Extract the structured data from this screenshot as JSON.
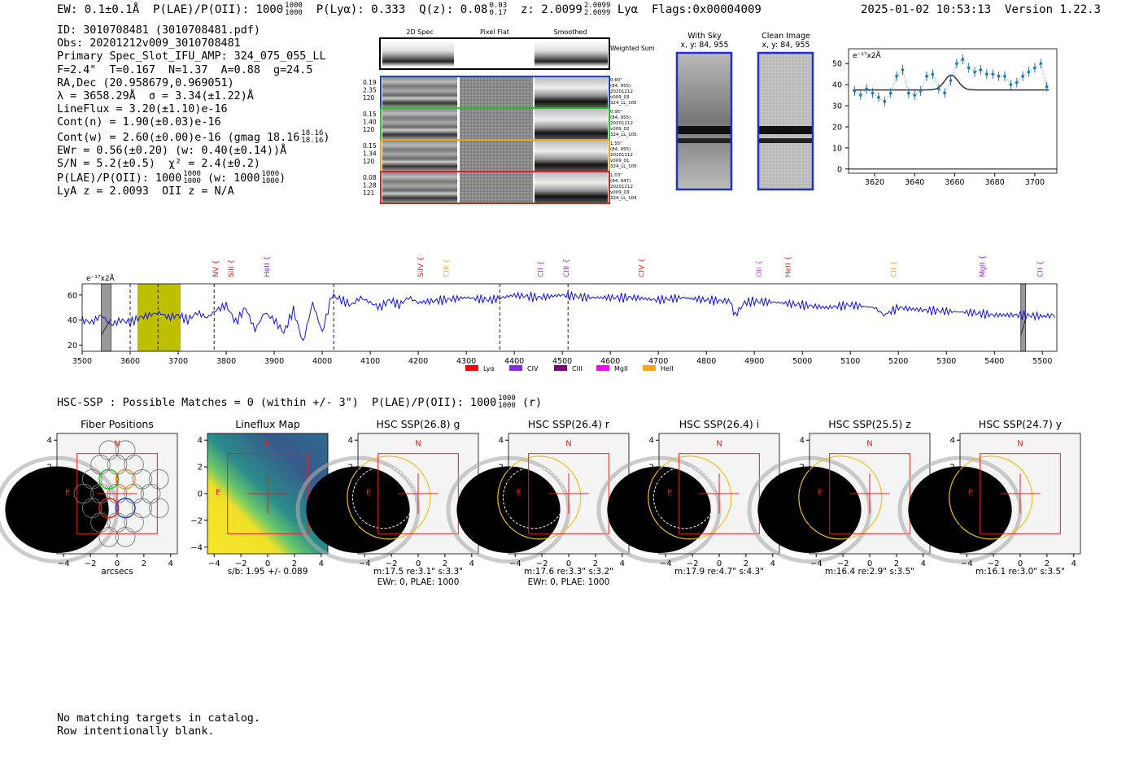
{
  "header": {
    "ew_label": "EW: 0.1±0.1Å",
    "plae_label": "P(LAE)/P(OII): 1000",
    "plae_hi": "1000",
    "plae_lo": "1000",
    "plya_label": "P(Lyα): 0.333",
    "qz_label": "Q(z): 0.08",
    "qz_hi": "0.03",
    "qz_lo": "0.17",
    "z_label": "z: 2.0099",
    "z_hi": "2.0099",
    "z_lo": "2.0099",
    "z_line": "Lyα",
    "flags": "Flags:0x00004009",
    "timestamp": "2025-01-02 10:53:13",
    "version": "Version 1.22.3"
  },
  "info": {
    "id": "ID: 3010708481 (3010708481.pdf)",
    "obs": "Obs: 20201212v009_3010708481",
    "primary": "Primary Spec_Slot_IFU_AMP: 324_075_055_LL",
    "params": "F=2.4\"  T=0.167  N=1.37  A=0.88  g=24.5",
    "radec": "RA,Dec (20.958679,0.969051)",
    "lambda_sigma": "λ = 3658.29Å  σ = 3.34(±1.22)Å",
    "lineflux": "LineFlux = 3.20(±1.10)e-16",
    "contn": "Cont(n) = 1.90(±0.03)e-16",
    "contw": "Cont(w) = 2.60(±0.00)e-16 (gmag 18.16",
    "contw_hi": "18.16",
    "contw_lo": "18.16",
    "ewr": "EWr = 0.56(±0.20) (w: 0.40(±0.14))Å",
    "sn": "S/N = 5.2(±0.5)  χ² = 2.4(±0.2)",
    "plae": "P(LAE)/P(OII): 1000",
    "plae_hi": "1000",
    "plae_lo": "1000",
    "plae_w": "(w: 1000",
    "plae_w_hi": "1000",
    "plae_w_lo": "1000",
    "lya": "LyA z = 2.0093  OII z = N/A"
  },
  "cutouts": {
    "col_titles": [
      "2D Spec",
      "Pixel Flat",
      "Smoothed"
    ],
    "weighted_label": "Weighted Sum",
    "rows": [
      {
        "left": [
          "0.19",
          "2.35",
          "120"
        ],
        "right": [
          "0.60\"",
          "(84, 955)",
          "20201212",
          "v009_03",
          "324_LL_105"
        ],
        "color": "#1f3fcf"
      },
      {
        "left": [
          "0.15",
          "1.40",
          "120"
        ],
        "right": [
          "0.95\"",
          "(84, 955)",
          "20201212",
          "v009_02",
          "324_LL_105"
        ],
        "color": "#22c322"
      },
      {
        "left": [
          "0.15",
          "1.34",
          "120"
        ],
        "right": [
          "1.55\"",
          "(84, 955)",
          "20201212",
          "v009_01",
          "324_LL_105"
        ],
        "color": "#f0a020"
      },
      {
        "left": [
          "0.08",
          "1.28",
          "121"
        ],
        "right": [
          "1.03\"",
          "(84, 947)",
          "20201212",
          "v009_03",
          "324_LL_104"
        ],
        "color": "#e02020"
      }
    ],
    "with_sky_title": "With Sky",
    "with_sky_coords": "x, y: 84, 955",
    "clean_title": "Clean Image",
    "clean_coords": "x, y: 84, 955"
  },
  "chart_data": [
    {
      "type": "line",
      "name": "zoom-spectrum",
      "unit_label": "e⁻¹⁷x2Å",
      "x": [
        3610,
        3613,
        3616,
        3619,
        3622,
        3625,
        3628,
        3631,
        3634,
        3637,
        3640,
        3643,
        3646,
        3649,
        3652,
        3655,
        3658,
        3661,
        3664,
        3667,
        3670,
        3673,
        3676,
        3679,
        3682,
        3685,
        3688,
        3691,
        3694,
        3697,
        3700,
        3703,
        3706
      ],
      "y": [
        37,
        35,
        38,
        36,
        34,
        32,
        36,
        44,
        47,
        36,
        35,
        37,
        44,
        45,
        38,
        36,
        42,
        50,
        52,
        48,
        46,
        47,
        45,
        45,
        44,
        44,
        40,
        41,
        44,
        46,
        48,
        50,
        39
      ],
      "model": {
        "baseline": 37.5,
        "amplitude": 7.0,
        "center": 3658.3,
        "sigma": 3.34
      },
      "xlim": [
        3607,
        3711
      ],
      "ylim": [
        -2,
        57
      ],
      "xticks": [
        3620,
        3640,
        3660,
        3680,
        3700
      ],
      "yticks": [
        0,
        10,
        20,
        30,
        40,
        50
      ]
    },
    {
      "type": "line",
      "name": "full-spectrum",
      "unit_label": "e⁻¹⁷x2Å",
      "x": [
        3500,
        3520,
        3540,
        3560,
        3580,
        3600,
        3620,
        3640,
        3660,
        3680,
        3700,
        3720,
        3740,
        3760,
        3780,
        3800,
        3820,
        3840,
        3860,
        3880,
        3900,
        3920,
        3940,
        3960,
        3980,
        4000,
        4020,
        4040,
        4060,
        4080,
        4100,
        4120,
        4140,
        4160,
        4180,
        4200,
        4250,
        4300,
        4350,
        4400,
        4450,
        4500,
        4550,
        4600,
        4650,
        4700,
        4750,
        4800,
        4850,
        4860,
        4880,
        4900,
        4950,
        5000,
        5050,
        5100,
        5150,
        5170,
        5200,
        5250,
        5300,
        5350,
        5400,
        5450,
        5500,
        5530
      ],
      "y": [
        40,
        38,
        44,
        36,
        40,
        38,
        42,
        44,
        46,
        42,
        44,
        40,
        46,
        42,
        48,
        52,
        38,
        50,
        32,
        46,
        40,
        30,
        48,
        22,
        54,
        30,
        60,
        56,
        52,
        58,
        54,
        50,
        56,
        52,
        58,
        54,
        56,
        58,
        56,
        60,
        58,
        60,
        58,
        58,
        58,
        56,
        58,
        56,
        55,
        44,
        54,
        55,
        54,
        52,
        50,
        52,
        50,
        44,
        50,
        48,
        47,
        46,
        44,
        44,
        43,
        44
      ],
      "xlim": [
        3500,
        5530
      ],
      "ylim": [
        15,
        69
      ],
      "xticks": [
        3500,
        3600,
        3700,
        3800,
        3900,
        4000,
        4100,
        4200,
        4300,
        4400,
        4500,
        4600,
        4700,
        4800,
        4900,
        5000,
        5100,
        5200,
        5300,
        5400,
        5500
      ],
      "yticks": [
        20,
        40,
        60
      ],
      "highlight_range": [
        3615,
        3705
      ],
      "hatched_regions": [
        [
          3540,
          3560
        ],
        [
          5455,
          5465
        ]
      ],
      "dashed_lines": [
        3600,
        3658,
        3775,
        4024,
        4370,
        4512
      ],
      "lines": [
        {
          "label": "NV",
          "wave": 3778,
          "color": "#e02020"
        },
        {
          "label": "SiII",
          "wave": 3810,
          "color": "#e02020"
        },
        {
          "label": "HeII",
          "wave": 3885,
          "color": "#8a2be2"
        },
        {
          "label": "SiIV",
          "wave": 4205,
          "color": "#e02020"
        },
        {
          "label": "CIII",
          "wave": 4258,
          "color": "#f0a020"
        },
        {
          "label": "CII",
          "wave": 4455,
          "color": "#8a2be2"
        },
        {
          "label": "CIII",
          "wave": 4508,
          "color": "#8a2be2"
        },
        {
          "label": "CIV",
          "wave": 4665,
          "color": "#e02020"
        },
        {
          "label": "OII",
          "wave": 4910,
          "color": "#e040e0"
        },
        {
          "label": "HeII",
          "wave": 4970,
          "color": "#e02020"
        },
        {
          "label": "CII",
          "wave": 5190,
          "color": "#f0a020"
        },
        {
          "label": "MgII",
          "wave": 5375,
          "color": "#8a2be2"
        },
        {
          "label": "CII",
          "wave": 5495,
          "color": "#8a2be2"
        }
      ],
      "legend": [
        {
          "label": "Lyα",
          "color": "#ff0000"
        },
        {
          "label": "CIV",
          "color": "#8a2be2"
        },
        {
          "label": "CIII",
          "color": "#800080"
        },
        {
          "label": "MgII",
          "color": "#ff00ff"
        },
        {
          "label": "HeII",
          "color": "#ffa500"
        }
      ]
    }
  ],
  "hsc": {
    "summary": "HSC-SSP : Possible Matches = 0 (within +/- 3\")  P(LAE)/P(OII): 1000",
    "plae_hi": "1000",
    "plae_lo": "1000",
    "suffix": "(r)",
    "panels": [
      {
        "title": "Fiber Positions",
        "caption1": "arcsecs",
        "caption2": ""
      },
      {
        "title": "Lineflux Map",
        "caption1": "s/b: 1.95 +/- 0.089",
        "caption2": ""
      },
      {
        "title": "HSC SSP(26.8) g",
        "caption1": "m:17.5   re:3.1\"   s:3.3\"",
        "caption2": "EWr: 0, PLAE: 1000"
      },
      {
        "title": "HSC SSP(26.4) r",
        "caption1": "m:17.6   re:3.3\"   s:3.2\"",
        "caption2": "EWr: 0, PLAE: 1000"
      },
      {
        "title": "HSC SSP(26.4) i",
        "caption1": "m:17.9   re:4.7\"   s:4.3\"",
        "caption2": ""
      },
      {
        "title": "HSC SSP(25.5) z",
        "caption1": "m:16.4   re:2.9\"   s:3.5\"",
        "caption2": ""
      },
      {
        "title": "HSC SSP(24.7) y",
        "caption1": "m:16.1   re:3.0\"   s:3.5\"",
        "caption2": ""
      }
    ],
    "axis_ticks": [
      "−4",
      "−2",
      "0",
      "2",
      "4"
    ],
    "north_label": "N",
    "east_label": "E"
  },
  "footer": {
    "line1": "No matching targets in catalog.",
    "line2": "Row intentionally blank."
  }
}
